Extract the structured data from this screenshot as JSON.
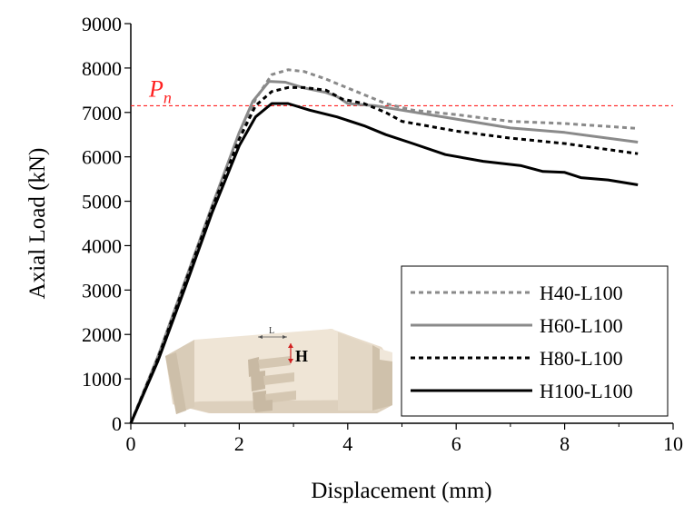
{
  "chart_data": {
    "type": "line",
    "title": "",
    "xlabel": "Displacement (mm)",
    "ylabel": "Axial Load (kN)",
    "xlim": [
      0,
      10
    ],
    "ylim": [
      0,
      9000
    ],
    "x_ticks": [
      0,
      2,
      4,
      6,
      8,
      10
    ],
    "x_tick_labels": [
      "0",
      "2",
      "4",
      "6",
      "8",
      "10"
    ],
    "y_ticks": [
      0,
      1000,
      2000,
      3000,
      4000,
      5000,
      6000,
      7000,
      8000,
      9000
    ],
    "y_tick_labels": [
      "0",
      "1000",
      "2000",
      "3000",
      "4000",
      "5000",
      "6000",
      "7000",
      "8000",
      "9000"
    ],
    "legend_position": "bottom-right",
    "reference_line": {
      "label_base": "P",
      "label_sub": "n",
      "y": 7150,
      "color": "#ff2020"
    },
    "series": [
      {
        "name": "H40-L100",
        "color": "#8a8a8a",
        "dash": "dotted",
        "points": [
          [
            0,
            0
          ],
          [
            0.5,
            1500
          ],
          [
            1.0,
            3200
          ],
          [
            1.5,
            4900
          ],
          [
            2.0,
            6450
          ],
          [
            2.3,
            7300
          ],
          [
            2.6,
            7850
          ],
          [
            2.9,
            7960
          ],
          [
            3.2,
            7920
          ],
          [
            3.6,
            7750
          ],
          [
            4.0,
            7550
          ],
          [
            4.3,
            7400
          ],
          [
            4.7,
            7200
          ],
          [
            5.2,
            7050
          ],
          [
            6.0,
            6950
          ],
          [
            7.0,
            6800
          ],
          [
            8.0,
            6750
          ],
          [
            9.35,
            6640
          ]
        ]
      },
      {
        "name": "H60-L100",
        "color": "#8a8a8a",
        "dash": "solid",
        "points": [
          [
            0,
            0
          ],
          [
            0.5,
            1500
          ],
          [
            1.0,
            3200
          ],
          [
            1.5,
            4900
          ],
          [
            2.0,
            6550
          ],
          [
            2.25,
            7250
          ],
          [
            2.55,
            7700
          ],
          [
            2.85,
            7680
          ],
          [
            3.2,
            7550
          ],
          [
            3.6,
            7450
          ],
          [
            3.8,
            7360
          ],
          [
            4.0,
            7200
          ],
          [
            4.5,
            7150
          ],
          [
            5.0,
            7050
          ],
          [
            6.0,
            6850
          ],
          [
            7.0,
            6650
          ],
          [
            8.0,
            6550
          ],
          [
            9.35,
            6330
          ]
        ]
      },
      {
        "name": "H80-L100",
        "color": "#000000",
        "dash": "dotted",
        "points": [
          [
            0,
            0
          ],
          [
            0.5,
            1450
          ],
          [
            1.0,
            3150
          ],
          [
            1.5,
            4850
          ],
          [
            2.0,
            6400
          ],
          [
            2.3,
            7150
          ],
          [
            2.6,
            7470
          ],
          [
            2.9,
            7560
          ],
          [
            3.2,
            7560
          ],
          [
            3.6,
            7500
          ],
          [
            3.9,
            7300
          ],
          [
            4.3,
            7200
          ],
          [
            4.7,
            7000
          ],
          [
            5.0,
            6800
          ],
          [
            6.0,
            6580
          ],
          [
            7.0,
            6420
          ],
          [
            8.0,
            6300
          ],
          [
            9.35,
            6070
          ]
        ]
      },
      {
        "name": "H100-L100",
        "color": "#000000",
        "dash": "solid",
        "points": [
          [
            0,
            0
          ],
          [
            0.5,
            1400
          ],
          [
            1.0,
            3050
          ],
          [
            1.5,
            4750
          ],
          [
            2.0,
            6250
          ],
          [
            2.3,
            6900
          ],
          [
            2.6,
            7200
          ],
          [
            2.9,
            7200
          ],
          [
            3.3,
            7050
          ],
          [
            3.8,
            6900
          ],
          [
            4.3,
            6700
          ],
          [
            4.7,
            6500
          ],
          [
            5.2,
            6300
          ],
          [
            5.8,
            6050
          ],
          [
            6.5,
            5900
          ],
          [
            7.2,
            5800
          ],
          [
            7.6,
            5670
          ],
          [
            8.0,
            5650
          ],
          [
            8.3,
            5530
          ],
          [
            8.8,
            5480
          ],
          [
            9.35,
            5370
          ]
        ]
      }
    ]
  },
  "inset": {
    "length_label": "L",
    "height_label": "H"
  }
}
